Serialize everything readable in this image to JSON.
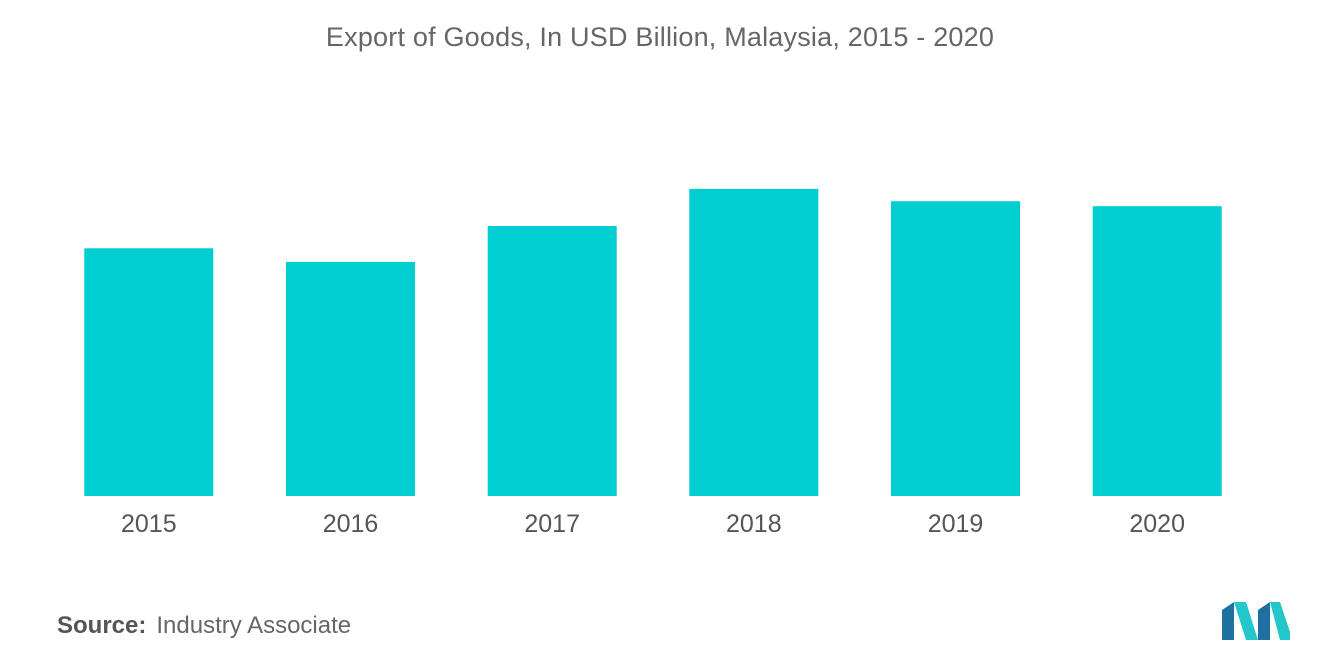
{
  "header": {
    "title": "Export of Goods, In USD Billion, Malaysia, 2015 - 2020"
  },
  "chart_data": {
    "type": "bar",
    "title": "Export of Goods, In USD Billion, Malaysia, 2015 - 2020",
    "categories": [
      "2015",
      "2016",
      "2017",
      "2018",
      "2019",
      "2020"
    ],
    "values": [
      200,
      189,
      218,
      248,
      238,
      234
    ],
    "xlabel": "",
    "ylabel": "",
    "ylim": [
      0,
      260
    ],
    "grid": false,
    "legend": "none",
    "bar_color": "#00CED1"
  },
  "footer": {
    "source_label": "Source:",
    "source_value": "Industry Associate"
  },
  "colors": {
    "bar": "#00CED1",
    "logo_dark": "#1F6F9F",
    "logo_light": "#22C7C9"
  }
}
